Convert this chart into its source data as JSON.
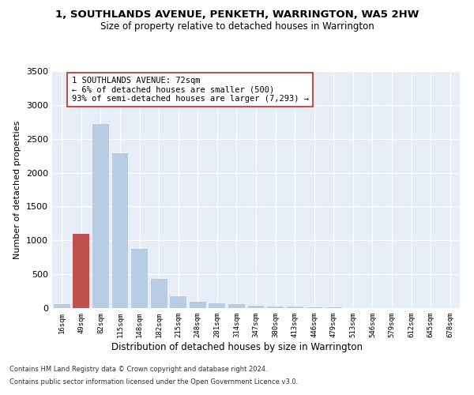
{
  "title": "1, SOUTHLANDS AVENUE, PENKETH, WARRINGTON, WA5 2HW",
  "subtitle": "Size of property relative to detached houses in Warrington",
  "xlabel": "Distribution of detached houses by size in Warrington",
  "ylabel": "Number of detached properties",
  "categories": [
    "16sqm",
    "49sqm",
    "82sqm",
    "115sqm",
    "148sqm",
    "182sqm",
    "215sqm",
    "248sqm",
    "281sqm",
    "314sqm",
    "347sqm",
    "380sqm",
    "413sqm",
    "446sqm",
    "479sqm",
    "513sqm",
    "546sqm",
    "579sqm",
    "612sqm",
    "645sqm",
    "678sqm"
  ],
  "values": [
    55,
    1100,
    2720,
    2290,
    880,
    430,
    170,
    95,
    65,
    55,
    35,
    28,
    22,
    10,
    8,
    5,
    4,
    3,
    2,
    2,
    2
  ],
  "bar_color": "#b8cce4",
  "highlight_bar_index": 1,
  "highlight_bar_color": "#c0504d",
  "annotation_line1": "1 SOUTHLANDS AVENUE: 72sqm",
  "annotation_line2": "← 6% of detached houses are smaller (500)",
  "annotation_line3": "93% of semi-detached houses are larger (7,293) →",
  "annotation_box_color": "#c0504d",
  "ylim": [
    0,
    3500
  ],
  "yticks": [
    0,
    500,
    1000,
    1500,
    2000,
    2500,
    3000,
    3500
  ],
  "background_color": "#e8eef7",
  "grid_color": "#ffffff",
  "footer_line1": "Contains HM Land Registry data © Crown copyright and database right 2024.",
  "footer_line2": "Contains public sector information licensed under the Open Government Licence v3.0."
}
